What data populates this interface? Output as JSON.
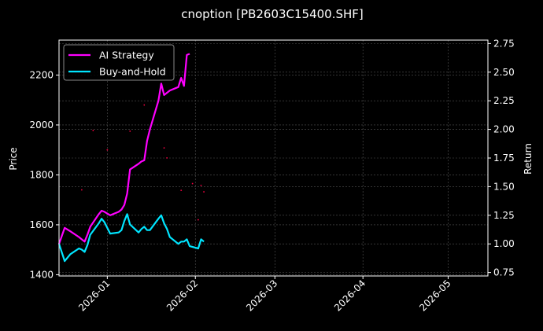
{
  "chart_data": {
    "type": "line",
    "title": "cnoption [PB2603C15400.SHF]",
    "xlabel": "",
    "ylabel": "Price",
    "y2label": "Return",
    "x_ticks": [
      "2026-01",
      "2026-02",
      "2026-03",
      "2026-04",
      "2026-05"
    ],
    "xlim": [
      "2025-12-15",
      "2026-05-15"
    ],
    "ylim": [
      1395,
      2340
    ],
    "y_ticks": [
      1400,
      1600,
      1800,
      2000,
      2200
    ],
    "y2lim": [
      0.72,
      2.78
    ],
    "y2_ticks": [
      "0.75",
      "1.00",
      "1.25",
      "1.50",
      "1.75",
      "2.00",
      "2.25",
      "2.50",
      "2.75"
    ],
    "grid": true,
    "legend": "top-left",
    "series": [
      {
        "name": "AI Strategy",
        "axis": "right",
        "color": "#ff00ff",
        "points": [
          [
            "2025-12-15",
            1.0
          ],
          [
            "2025-12-17",
            1.14
          ],
          [
            "2025-12-19",
            1.11
          ],
          [
            "2025-12-22",
            1.06
          ],
          [
            "2025-12-24",
            1.02
          ],
          [
            "2025-12-25",
            1.08
          ],
          [
            "2025-12-26",
            1.15
          ],
          [
            "2025-12-29",
            1.26
          ],
          [
            "2025-12-30",
            1.29
          ],
          [
            "2025-12-31",
            1.28
          ],
          [
            "2026-01-02",
            1.25
          ],
          [
            "2026-01-05",
            1.28
          ],
          [
            "2026-01-06",
            1.3
          ],
          [
            "2026-01-07",
            1.34
          ],
          [
            "2026-01-08",
            1.44
          ],
          [
            "2026-01-09",
            1.65
          ],
          [
            "2026-01-12",
            1.7
          ],
          [
            "2026-01-13",
            1.72
          ],
          [
            "2026-01-14",
            1.73
          ],
          [
            "2026-01-15",
            1.9
          ],
          [
            "2026-01-16",
            2.0
          ],
          [
            "2026-01-19",
            2.25
          ],
          [
            "2026-01-20",
            2.4
          ],
          [
            "2026-01-21",
            2.3
          ],
          [
            "2026-01-22",
            2.32
          ],
          [
            "2026-01-23",
            2.34
          ],
          [
            "2026-01-26",
            2.37
          ],
          [
            "2026-01-27",
            2.45
          ],
          [
            "2026-01-28",
            2.38
          ],
          [
            "2026-01-29",
            2.65
          ],
          [
            "2026-01-30",
            2.66
          ]
        ]
      },
      {
        "name": "Buy-and-Hold",
        "axis": "right",
        "color": "#00e5ff",
        "points": [
          [
            "2025-12-15",
            1.0
          ],
          [
            "2025-12-17",
            0.85
          ],
          [
            "2025-12-19",
            0.91
          ],
          [
            "2025-12-22",
            0.96
          ],
          [
            "2025-12-23",
            0.95
          ],
          [
            "2025-12-24",
            0.93
          ],
          [
            "2025-12-25",
            0.99
          ],
          [
            "2025-12-26",
            1.08
          ],
          [
            "2025-12-29",
            1.18
          ],
          [
            "2025-12-30",
            1.22
          ],
          [
            "2025-12-31",
            1.19
          ],
          [
            "2026-01-02",
            1.09
          ],
          [
            "2026-01-05",
            1.1
          ],
          [
            "2026-01-06",
            1.12
          ],
          [
            "2026-01-07",
            1.2
          ],
          [
            "2026-01-08",
            1.26
          ],
          [
            "2026-01-09",
            1.17
          ],
          [
            "2026-01-12",
            1.1
          ],
          [
            "2026-01-13",
            1.13
          ],
          [
            "2026-01-14",
            1.15
          ],
          [
            "2026-01-15",
            1.12
          ],
          [
            "2026-01-16",
            1.12
          ],
          [
            "2026-01-19",
            1.22
          ],
          [
            "2026-01-20",
            1.25
          ],
          [
            "2026-01-21",
            1.18
          ],
          [
            "2026-01-22",
            1.13
          ],
          [
            "2026-01-23",
            1.06
          ],
          [
            "2026-01-26",
            1.0
          ],
          [
            "2026-01-27",
            1.02
          ],
          [
            "2026-01-28",
            1.02
          ],
          [
            "2026-01-29",
            1.04
          ],
          [
            "2026-01-30",
            0.98
          ],
          [
            "2026-02-02",
            0.96
          ],
          [
            "2026-02-03",
            1.04
          ],
          [
            "2026-02-04",
            1.02
          ]
        ]
      }
    ],
    "price_markers": {
      "axis": "left",
      "color": "#ff0044",
      "points": [
        [
          "2025-12-23",
          1740
        ],
        [
          "2025-12-27",
          1978
        ],
        [
          "2026-01-01",
          1900
        ],
        [
          "2026-01-09",
          1975
        ],
        [
          "2026-01-14",
          2080
        ],
        [
          "2026-01-21",
          1908
        ],
        [
          "2026-01-22",
          1868
        ],
        [
          "2026-01-27",
          1738
        ],
        [
          "2026-01-31",
          1765
        ],
        [
          "2026-02-02",
          1620
        ],
        [
          "2026-02-03",
          1758
        ],
        [
          "2026-02-04",
          1732
        ]
      ]
    }
  }
}
